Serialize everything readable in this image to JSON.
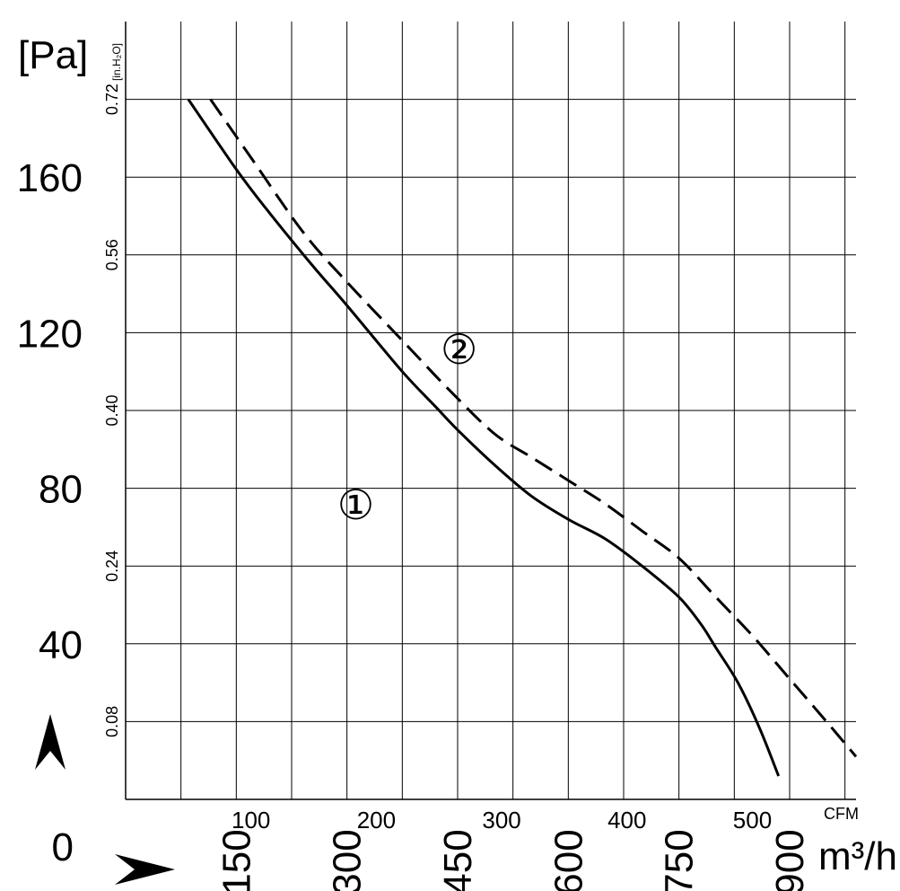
{
  "chart_data": {
    "type": "line",
    "y_axis_left": {
      "unit_label": "[Pa]",
      "ticks": [
        "0",
        "40",
        "80",
        "120",
        "160"
      ],
      "range": [
        0,
        200
      ]
    },
    "y_axis_inner": {
      "unit_label": "[in.H₂O]",
      "ticks": [
        "0.08",
        "0.24",
        "0.40",
        "0.56",
        "0.72"
      ]
    },
    "x_axis_cfm": {
      "unit_label": "CFM",
      "ticks": [
        "100",
        "200",
        "300",
        "400",
        "500"
      ]
    },
    "x_axis_m3h": {
      "unit_label": "m³/h",
      "ticks": [
        "150",
        "300",
        "450",
        "600",
        "750",
        "900"
      ],
      "range": [
        0,
        990
      ]
    },
    "grid": true,
    "series": [
      {
        "name": "①",
        "style": "solid",
        "x": [
          85,
          150,
          190,
          250,
          300,
          375,
          420,
          450,
          500,
          550,
          600,
          650,
          700,
          750,
          780,
          800,
          830,
          860,
          885
        ],
        "y": [
          180,
          162,
          152,
          138,
          127,
          110,
          101,
          95,
          86,
          78,
          72,
          67,
          60,
          52,
          45,
          39,
          30,
          18,
          6
        ]
      },
      {
        "name": "②",
        "style": "dashed",
        "x": [
          115,
          170,
          240,
          300,
          380,
          440,
          500,
          550,
          600,
          650,
          700,
          750,
          800,
          850,
          900,
          950,
          990
        ],
        "y": [
          180,
          165,
          146,
          133,
          117,
          105,
          94,
          88,
          82,
          76,
          69,
          62,
          52,
          42,
          31,
          20,
          11
        ]
      }
    ]
  },
  "decor": {
    "arrow_up_icon": "arrow-up-icon",
    "arrow_right_icon": "arrow-right-icon"
  }
}
